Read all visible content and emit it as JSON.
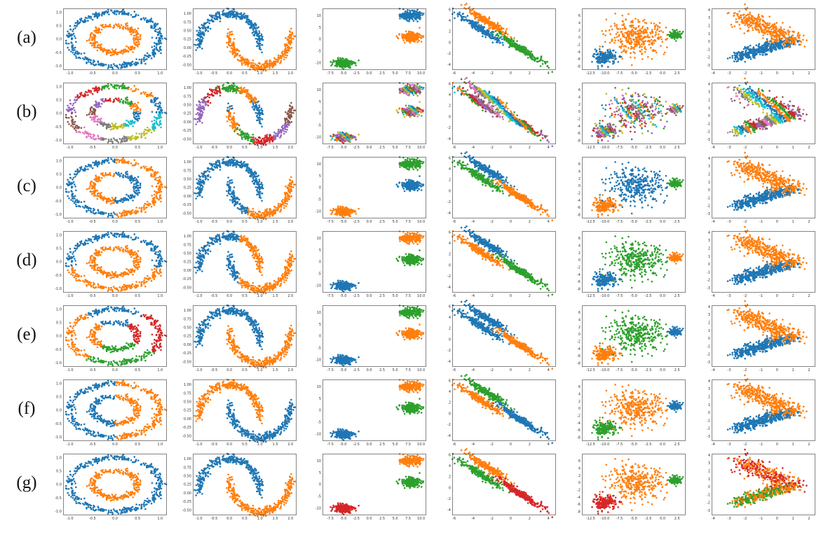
{
  "figure": {
    "row_labels": [
      "(a)",
      "(b)",
      "(c)",
      "(d)",
      "(e)",
      "(f)",
      "(g)"
    ],
    "colors": [
      "#1f77b4",
      "#ff7f0e",
      "#2ca02c",
      "#d62728",
      "#9467bd",
      "#8c564b",
      "#e377c2",
      "#7f7f7f",
      "#bcbd22",
      "#17becf"
    ]
  },
  "chart_data": [
    {
      "type": "scatter",
      "dataset": "circles",
      "xlim": [
        -1.15,
        1.15
      ],
      "ylim": [
        -1.15,
        1.15
      ],
      "xticks": [
        "-1.0",
        "-0.5",
        "0.0",
        "0.5",
        "1.0"
      ],
      "xtick_values": [
        -1,
        -0.5,
        0,
        0.5,
        1
      ],
      "yticks": [
        "-1.0",
        "-0.5",
        "0.0",
        "0.5",
        "1.0"
      ],
      "ytick_values": [
        -1,
        -0.5,
        0,
        0.5,
        1
      ],
      "rows": {
        "a": [
          {
            "region": "outer ring",
            "color": 1
          },
          {
            "region": "inner ring",
            "color": 2
          }
        ],
        "b": [
          {
            "region": "many small arcs",
            "colors": [
              1,
              2,
              3,
              4,
              5,
              6,
              7,
              8,
              9,
              10
            ]
          }
        ],
        "c": [
          {
            "region": "left half of outer ring + right half of inner ring",
            "color": 1
          },
          {
            "region": "right half of outer ring + left half of inner ring",
            "color": 2
          }
        ],
        "d": [
          {
            "region": "upper part of outer ring",
            "color": 1
          },
          {
            "region": "lower part of outer ring + inner ring",
            "color": 2
          }
        ],
        "e": [
          {
            "region": "left arc",
            "color": 2
          },
          {
            "region": "top arc",
            "color": 1
          },
          {
            "region": "right arcs",
            "color": 4
          },
          {
            "region": "bottom arc",
            "color": 3
          }
        ],
        "f": [
          {
            "region": "left halves",
            "color": 1
          },
          {
            "region": "right halves",
            "color": 2
          }
        ],
        "g": [
          {
            "region": "outer ring",
            "color": 1
          },
          {
            "region": "inner ring",
            "color": 2
          }
        ]
      }
    },
    {
      "type": "scatter",
      "dataset": "moons",
      "xlim": [
        -1.2,
        2.2
      ],
      "ylim": [
        -0.65,
        1.15
      ],
      "xticks": [
        "-1.0",
        "-0.5",
        "0.0",
        "0.5",
        "1.0",
        "1.5",
        "2.0"
      ],
      "xtick_values": [
        -1,
        -0.5,
        0,
        0.5,
        1,
        1.5,
        2
      ],
      "yticks": [
        "-0.50",
        "-0.25",
        "0.00",
        "0.25",
        "0.50",
        "0.75",
        "1.00"
      ],
      "ytick_values": [
        -0.5,
        -0.25,
        0,
        0.25,
        0.5,
        0.75,
        1
      ],
      "rows": {
        "a": [
          {
            "region": "upper moon",
            "color": 1
          },
          {
            "region": "lower moon",
            "color": 2
          }
        ],
        "b": [
          {
            "region": "many small segments",
            "colors": [
              1,
              2,
              3,
              4,
              5,
              6,
              7,
              8,
              9,
              10
            ]
          }
        ],
        "c": [
          {
            "region": "upper moon + left part of lower moon",
            "color": 1
          },
          {
            "region": "right part of lower moon",
            "color": 2
          }
        ],
        "d": [
          {
            "region": "left part of both moons",
            "color": 1
          },
          {
            "region": "right parts",
            "color": 2
          }
        ],
        "e": [
          {
            "region": "upper moon",
            "color": 1
          },
          {
            "region": "lower moon",
            "color": 2
          }
        ],
        "f": [
          {
            "region": "upper moon",
            "color": 2
          },
          {
            "region": "lower moon",
            "color": 1
          }
        ],
        "g": [
          {
            "region": "upper moon",
            "color": 1
          },
          {
            "region": "lower moon",
            "color": 2
          }
        ]
      }
    },
    {
      "type": "scatter",
      "dataset": "blobs",
      "xlim": [
        -9,
        11
      ],
      "ylim": [
        -13,
        13
      ],
      "xticks": [
        "-7.5",
        "-5.0",
        "-2.5",
        "0.0",
        "2.5",
        "5.0",
        "7.5",
        "10.0"
      ],
      "xtick_values": [
        -7.5,
        -5,
        -2.5,
        0,
        2.5,
        5,
        7.5,
        10
      ],
      "yticks": [
        "-10",
        "-5",
        "0",
        "5",
        "10"
      ],
      "ytick_values": [
        -10,
        -5,
        0,
        5,
        10
      ],
      "clusters": [
        {
          "center": [
            -5,
            -10
          ]
        },
        {
          "center": [
            8,
            10
          ]
        },
        {
          "center": [
            8,
            1
          ]
        }
      ],
      "rows": {
        "a": [
          {
            "cluster": 1,
            "color": 3
          },
          {
            "cluster": 2,
            "color": 1
          },
          {
            "cluster": 3,
            "color": 2
          }
        ],
        "b": [
          {
            "cluster": "split into several sub-groups",
            "colors": [
              1,
              2,
              3,
              4,
              5,
              6,
              7,
              8,
              9,
              10
            ]
          }
        ],
        "c": [
          {
            "cluster": 1,
            "color": 2
          },
          {
            "cluster": 2,
            "color": 3
          },
          {
            "cluster": 3,
            "color": 1
          }
        ],
        "d": [
          {
            "cluster": 1,
            "color": 1
          },
          {
            "cluster": 2,
            "color": 2
          },
          {
            "cluster": 3,
            "color": 3
          }
        ],
        "e": [
          {
            "cluster": 1,
            "color": 1
          },
          {
            "cluster": 2,
            "color": 3
          },
          {
            "cluster": 3,
            "color": 2
          }
        ],
        "f": [
          {
            "cluster": 1,
            "color": 1
          },
          {
            "cluster": 2,
            "color": 2
          },
          {
            "cluster": 3,
            "color": 3
          }
        ],
        "g": [
          {
            "cluster": 1,
            "color": 4
          },
          {
            "cluster": 2,
            "color": 2
          },
          {
            "cluster": 3,
            "color": 3
          }
        ]
      }
    },
    {
      "type": "scatter",
      "dataset": "anisotropic",
      "xlim": [
        -6.2,
        4.8
      ],
      "ylim": [
        -5,
        6.2
      ],
      "xticks": [
        "-6",
        "-4",
        "-2",
        "0",
        "2",
        "4"
      ],
      "xtick_values": [
        -6,
        -4,
        -2,
        0,
        2,
        4
      ],
      "yticks": [
        "-4",
        "-2",
        "0",
        "2",
        "4",
        "6"
      ],
      "ytick_values": [
        -4,
        -2,
        0,
        2,
        4,
        6
      ],
      "rows": {
        "a": [
          {
            "band": "lower-left",
            "color": 1
          },
          {
            "band": "upper-left",
            "color": 2
          },
          {
            "band": "right",
            "color": 3
          }
        ],
        "b": [
          {
            "band": "many small segments",
            "colors": [
              1,
              2,
              3,
              4,
              5,
              6,
              7,
              8,
              9,
              10
            ]
          }
        ],
        "c": [
          {
            "band": "lower-left",
            "color": 3
          },
          {
            "band": "upper-left",
            "color": 1
          },
          {
            "band": "right",
            "color": 2
          }
        ],
        "d": [
          {
            "band": "lower-left",
            "color": 2
          },
          {
            "band": "upper-left",
            "color": 1
          },
          {
            "band": "right",
            "color": 3
          }
        ],
        "e": [
          {
            "band": "lower-left",
            "color": 1
          },
          {
            "band": "upper-left",
            "color": 1
          },
          {
            "band": "right",
            "color": 2
          }
        ],
        "f": [
          {
            "band": "lower-left",
            "color": 2
          },
          {
            "band": "upper-left",
            "color": 3
          },
          {
            "band": "right",
            "color": 1
          }
        ],
        "g": [
          {
            "band": "lower-left",
            "color": 3
          },
          {
            "band": "upper-left",
            "color": 2
          },
          {
            "band": "right",
            "color": 4
          }
        ]
      }
    },
    {
      "type": "scatter",
      "dataset": "varied blobs",
      "xlim": [
        -14,
        4
      ],
      "ylim": [
        -9,
        8
      ],
      "xticks": [
        "-12.5",
        "-10.0",
        "-7.5",
        "-5.0",
        "-2.5",
        "0.0",
        "2.5"
      ],
      "xtick_values": [
        -12.5,
        -10,
        -7.5,
        -5,
        -2.5,
        0,
        2.5
      ],
      "yticks": [
        "-8",
        "-6",
        "-4",
        "-2",
        "0",
        "2",
        "4",
        "6"
      ],
      "ytick_values": [
        -8,
        -6,
        -4,
        -2,
        0,
        2,
        4,
        6
      ],
      "rows": {
        "a": [
          {
            "cluster": "dense lower-left",
            "color": 1
          },
          {
            "cluster": "wide center",
            "color": 2
          },
          {
            "cluster": "small right",
            "color": 3
          }
        ],
        "b": [
          {
            "cluster": "many small groups",
            "colors": [
              1,
              2,
              3,
              4,
              5,
              6,
              7,
              8,
              9,
              10
            ]
          }
        ],
        "c": [
          {
            "cluster": "dense lower-left",
            "color": 2
          },
          {
            "cluster": "wide center",
            "color": 1
          },
          {
            "cluster": "small right",
            "color": 3
          }
        ],
        "d": [
          {
            "cluster": "dense lower-left",
            "color": 1
          },
          {
            "cluster": "wide center",
            "color": 3
          },
          {
            "cluster": "small right",
            "color": 2
          }
        ],
        "e": [
          {
            "cluster": "dense lower-left",
            "color": 2
          },
          {
            "cluster": "wide center",
            "color": 3
          },
          {
            "cluster": "small right",
            "color": 1
          }
        ],
        "f": [
          {
            "cluster": "dense lower-left",
            "color": 3
          },
          {
            "cluster": "wide center",
            "color": 2
          },
          {
            "cluster": "small right",
            "color": 1
          }
        ],
        "g": [
          {
            "cluster": "dense lower-left",
            "color": 4
          },
          {
            "cluster": "wide center",
            "color": 2
          },
          {
            "cluster": "small right",
            "color": 3
          }
        ]
      }
    },
    {
      "type": "scatter",
      "dataset": "overlapping gaussians",
      "xlim": [
        -4.1,
        2.4
      ],
      "ylim": [
        -3.6,
        4.2
      ],
      "xticks": [
        "-4",
        "-3",
        "-2",
        "-1",
        "0",
        "1",
        "2"
      ],
      "xtick_values": [
        -4,
        -3,
        -2,
        -1,
        0,
        1,
        2
      ],
      "yticks": [
        "-3",
        "-2",
        "-1",
        "0",
        "1",
        "2",
        "3",
        "4"
      ],
      "ytick_values": [
        -3,
        -2,
        -1,
        0,
        1,
        2,
        3,
        4
      ],
      "rows": {
        "a": [
          {
            "group": "lower band",
            "color": 1
          },
          {
            "group": "upper fan",
            "color": 2
          }
        ],
        "b": [
          {
            "group": "many small groups",
            "colors": [
              1,
              2,
              3,
              4,
              5,
              6,
              7,
              8,
              9,
              10
            ]
          }
        ],
        "c": [
          {
            "group": "lower band",
            "color": 1
          },
          {
            "group": "upper fan",
            "color": 2
          }
        ],
        "d": [
          {
            "group": "lower band",
            "color": 1
          },
          {
            "group": "upper fan",
            "color": 2
          }
        ],
        "e": [
          {
            "group": "lower band",
            "color": 1
          },
          {
            "group": "upper fan",
            "color": 2
          }
        ],
        "f": [
          {
            "group": "lower band",
            "color": 1
          },
          {
            "group": "upper fan",
            "color": 2
          }
        ],
        "g": [
          {
            "group": "lower band",
            "color": 3
          },
          {
            "group": "upper fan",
            "color": 4
          },
          {
            "group": "spread",
            "color": 2
          }
        ]
      }
    }
  ]
}
